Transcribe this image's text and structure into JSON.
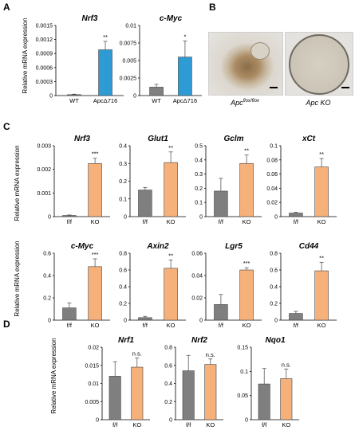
{
  "panel_letters": [
    "A",
    "B",
    "C",
    "D"
  ],
  "ylabel": "Relative mRNA expression",
  "colors": {
    "wt": "#7f7f7f",
    "apc716": "#2f9bd5",
    "ff": "#7f7f7f",
    "ko": "#f6b07a"
  },
  "photos": {
    "left_label": "Apc",
    "left_sup": "flox/flox",
    "right_label": "Apc KO"
  },
  "chart_data": [
    {
      "panel": "A",
      "type": "bar",
      "title": "Nrf3",
      "categories": [
        "WT",
        "ApcΔ716"
      ],
      "values": [
        2e-05,
        0.00098
      ],
      "errors": [
        1e-05,
        0.00018
      ],
      "sig": [
        "",
        "**"
      ],
      "ylim": [
        0,
        0.0015
      ],
      "ticks": [
        "0",
        "0.0003",
        "0.0006",
        "0.0009",
        "0.0012",
        "0.0015"
      ],
      "colors": [
        "wt",
        "apc716"
      ]
    },
    {
      "panel": "A",
      "type": "bar",
      "title": "c-Myc",
      "categories": [
        "WT",
        "ApcΔ716"
      ],
      "values": [
        0.0012,
        0.0055
      ],
      "errors": [
        0.0004,
        0.0023
      ],
      "sig": [
        "",
        "*"
      ],
      "ylim": [
        0,
        0.01
      ],
      "ticks": [
        "0",
        "0.0025",
        "0.005",
        "0.0075",
        "0.01"
      ],
      "colors": [
        "wt",
        "apc716"
      ]
    },
    {
      "panel": "C",
      "type": "bar",
      "title": "Nrf3",
      "categories": [
        "f/f",
        "KO"
      ],
      "values": [
        5e-05,
        0.00225
      ],
      "errors": [
        2e-05,
        0.00022
      ],
      "sig": [
        "",
        "***"
      ],
      "ylim": [
        0,
        0.003
      ],
      "ticks": [
        "0",
        "0.001",
        "0.002",
        "0.003"
      ],
      "colors": [
        "ff",
        "ko"
      ]
    },
    {
      "panel": "C",
      "type": "bar",
      "title": "Glut1",
      "categories": [
        "f/f",
        "KO"
      ],
      "values": [
        0.15,
        0.305
      ],
      "errors": [
        0.015,
        0.06
      ],
      "sig": [
        "",
        "**"
      ],
      "ylim": [
        0,
        0.4
      ],
      "ticks": [
        "0",
        "0.1",
        "0.2",
        "0.3",
        "0.4"
      ],
      "colors": [
        "ff",
        "ko"
      ]
    },
    {
      "panel": "C",
      "type": "bar",
      "title": "Gclm",
      "categories": [
        "f/f",
        "KO"
      ],
      "values": [
        0.18,
        0.375
      ],
      "errors": [
        0.09,
        0.06
      ],
      "sig": [
        "",
        "**"
      ],
      "ylim": [
        0,
        0.5
      ],
      "ticks": [
        "0",
        "0.1",
        "0.2",
        "0.3",
        "0.4",
        "0.5"
      ],
      "colors": [
        "ff",
        "ko"
      ]
    },
    {
      "panel": "C",
      "type": "bar",
      "title": "xCt",
      "categories": [
        "f/f",
        "KO"
      ],
      "values": [
        0.005,
        0.07
      ],
      "errors": [
        0.001,
        0.012
      ],
      "sig": [
        "",
        "**"
      ],
      "ylim": [
        0,
        0.1
      ],
      "ticks": [
        "0",
        "0.02",
        "0.04",
        "0.06",
        "0.08",
        "0.1"
      ],
      "colors": [
        "ff",
        "ko"
      ]
    },
    {
      "panel": "C",
      "type": "bar",
      "title": "c-Myc",
      "categories": [
        "f/f",
        "KO"
      ],
      "values": [
        0.11,
        0.48
      ],
      "errors": [
        0.045,
        0.07
      ],
      "sig": [
        "",
        "***"
      ],
      "ylim": [
        0,
        0.6
      ],
      "ticks": [
        "0",
        "0.2",
        "0.4",
        "0.6"
      ],
      "colors": [
        "ff",
        "ko"
      ]
    },
    {
      "panel": "C",
      "type": "bar",
      "title": "Axin2",
      "categories": [
        "f/f",
        "KO"
      ],
      "values": [
        0.03,
        0.62
      ],
      "errors": [
        0.015,
        0.1
      ],
      "sig": [
        "",
        "**"
      ],
      "ylim": [
        0,
        0.8
      ],
      "ticks": [
        "0",
        "0.2",
        "0.4",
        "0.6",
        "0.8"
      ],
      "colors": [
        "ff",
        "ko"
      ]
    },
    {
      "panel": "C",
      "type": "bar",
      "title": "Lgr5",
      "categories": [
        "f/f",
        "KO"
      ],
      "values": [
        0.014,
        0.045
      ],
      "errors": [
        0.009,
        0.002
      ],
      "sig": [
        "",
        "***"
      ],
      "ylim": [
        0,
        0.06
      ],
      "ticks": [
        "0",
        "0.02",
        "0.04",
        "0.06"
      ],
      "colors": [
        "ff",
        "ko"
      ]
    },
    {
      "panel": "C",
      "type": "bar",
      "title": "Cd44",
      "categories": [
        "f/f",
        "KO"
      ],
      "values": [
        0.08,
        0.59
      ],
      "errors": [
        0.025,
        0.1
      ],
      "sig": [
        "",
        "**"
      ],
      "ylim": [
        0,
        0.8
      ],
      "ticks": [
        "0",
        "0.2",
        "0.4",
        "0.6",
        "0.8"
      ],
      "colors": [
        "ff",
        "ko"
      ]
    },
    {
      "panel": "D",
      "type": "bar",
      "title": "Nrf1",
      "categories": [
        "f/f",
        "KO"
      ],
      "values": [
        0.012,
        0.0145
      ],
      "errors": [
        0.004,
        0.0025
      ],
      "sig": [
        "",
        "n.s."
      ],
      "ylim": [
        0,
        0.02
      ],
      "ticks": [
        "0",
        "0.005",
        "0.01",
        "0.015",
        "0.02"
      ],
      "colors": [
        "ff",
        "ko"
      ]
    },
    {
      "panel": "D",
      "type": "bar",
      "title": "Nrf2",
      "categories": [
        "f/f",
        "KO"
      ],
      "values": [
        0.54,
        0.61
      ],
      "errors": [
        0.17,
        0.06
      ],
      "sig": [
        "",
        "n.s."
      ],
      "ylim": [
        0,
        0.8
      ],
      "ticks": [
        "0",
        "0.2",
        "0.4",
        "0.6",
        "0.8"
      ],
      "colors": [
        "ff",
        "ko"
      ]
    },
    {
      "panel": "D",
      "type": "bar",
      "title": "Nqo1",
      "categories": [
        "f/f",
        "KO"
      ],
      "values": [
        0.074,
        0.085
      ],
      "errors": [
        0.032,
        0.02
      ],
      "sig": [
        "",
        "n.s."
      ],
      "ylim": [
        0,
        0.15
      ],
      "ticks": [
        "0",
        "0.05",
        "0.1",
        "0.15"
      ],
      "colors": [
        "ff",
        "ko"
      ]
    }
  ]
}
